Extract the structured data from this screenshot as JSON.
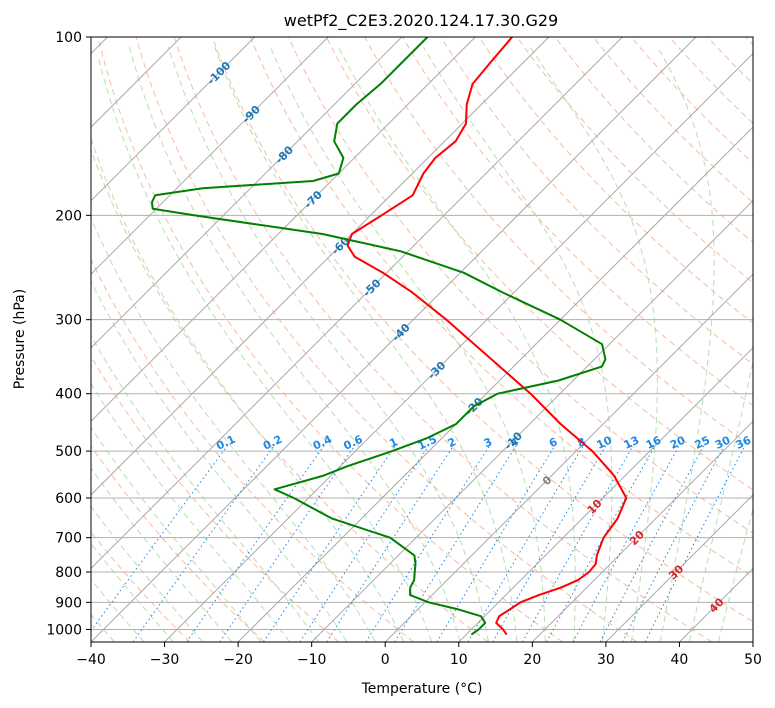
{
  "chart_data": {
    "type": "line",
    "subtype": "skew-T log-P diagram",
    "title": "wetPf2_C2E3.2020.124.17.30.G29",
    "xlabel": "Temperature (°C)",
    "ylabel": "Pressure (hPa)",
    "xlim": [
      -40,
      50
    ],
    "ylim": [
      1050,
      100
    ],
    "y_scale": "log",
    "x_ticks": [
      -40,
      -30,
      -20,
      -10,
      0,
      10,
      20,
      30,
      40,
      50
    ],
    "x_tick_labels": [
      "−40",
      "−30",
      "−20",
      "−10",
      "0",
      "10",
      "20",
      "30",
      "40",
      "50"
    ],
    "y_ticks": [
      100,
      200,
      300,
      400,
      500,
      600,
      700,
      800,
      900,
      1000
    ],
    "y_tick_labels": [
      "100",
      "200",
      "300",
      "400",
      "500",
      "600",
      "700",
      "800",
      "900",
      "1000"
    ],
    "grid": true,
    "colors": {
      "temperature": "#ff0000",
      "dewpoint": "#008000",
      "isotherm": "#a9a9a9",
      "dry_adiabat": "#f4a582",
      "moist_adiabat": "#a6d5a0",
      "mixing_ratio": "#1e88e5",
      "isotherm_label": "#1f77b4",
      "dry_adiabat_label": "#d62728"
    },
    "isotherm_labels": [
      "-100",
      "-90",
      "-80",
      "-70",
      "-60",
      "-50",
      "-40",
      "-30",
      "-20",
      "-10",
      "0",
      "10",
      "20",
      "30",
      "40"
    ],
    "isotherm_label_values": [
      -100,
      -90,
      -80,
      -70,
      -60,
      -50,
      -40,
      -30,
      -20,
      -10,
      0,
      10,
      20,
      30,
      40
    ],
    "mixing_ratio_labels": [
      "0.1",
      "0.2",
      "0.4",
      "0.6",
      "1",
      "1.5",
      "2",
      "3",
      "4",
      "6",
      "8",
      "10",
      "13",
      "16",
      "20",
      "25",
      "30",
      "36"
    ],
    "mixing_ratio_values": [
      0.1,
      0.2,
      0.4,
      0.6,
      1,
      1.5,
      2,
      3,
      4,
      6,
      8,
      10,
      13,
      16,
      20,
      25,
      30,
      36
    ],
    "series": [
      {
        "key": "temperature",
        "p": [
          1020,
          1000,
          975,
          950,
          925,
          900,
          875,
          850,
          825,
          800,
          775,
          750,
          700,
          650,
          600,
          550,
          500,
          450,
          400,
          350,
          300,
          270,
          250,
          235,
          225,
          215,
          200,
          185,
          170,
          160,
          150,
          140,
          130,
          120,
          110,
          100
        ],
        "t": [
          15.5,
          14.3,
          12.5,
          12.0,
          12.5,
          13.0,
          14.5,
          16.5,
          17.8,
          18.2,
          18.0,
          17.0,
          15.5,
          14.8,
          13.2,
          8.5,
          2.2,
          -5.8,
          -14.0,
          -24.0,
          -35.5,
          -43.8,
          -50.5,
          -56.5,
          -59.0,
          -60.0,
          -58.5,
          -57.0,
          -58.5,
          -59.0,
          -58.5,
          -59.5,
          -62.0,
          -64.0,
          -64.5,
          -65.0
        ]
      },
      {
        "key": "dewpoint",
        "p": [
          1020,
          1000,
          975,
          950,
          925,
          900,
          875,
          850,
          825,
          800,
          775,
          750,
          700,
          650,
          600,
          580,
          550,
          530,
          500,
          475,
          450,
          420,
          400,
          380,
          360,
          350,
          330,
          300,
          270,
          250,
          230,
          215,
          200,
          195,
          190,
          185,
          180,
          175,
          170,
          160,
          150,
          140,
          130,
          120,
          110,
          100
        ],
        "t": [
          10.7,
          11.0,
          11.0,
          9.5,
          5.5,
          0.5,
          -3.0,
          -4.0,
          -4.5,
          -5.5,
          -6.5,
          -7.8,
          -13.5,
          -24.0,
          -32.0,
          -35.8,
          -31.0,
          -29.0,
          -25.0,
          -22.0,
          -20.0,
          -20.0,
          -18.5,
          -12.0,
          -8.0,
          -8.5,
          -11.0,
          -20.0,
          -31.5,
          -39.5,
          -51.0,
          -64.0,
          -84.0,
          -90.5,
          -91.5,
          -92.0,
          -86.5,
          -72.5,
          -70.0,
          -71.5,
          -75.0,
          -77.0,
          -77.0,
          -76.5,
          -76.5,
          -76.5
        ]
      }
    ]
  }
}
